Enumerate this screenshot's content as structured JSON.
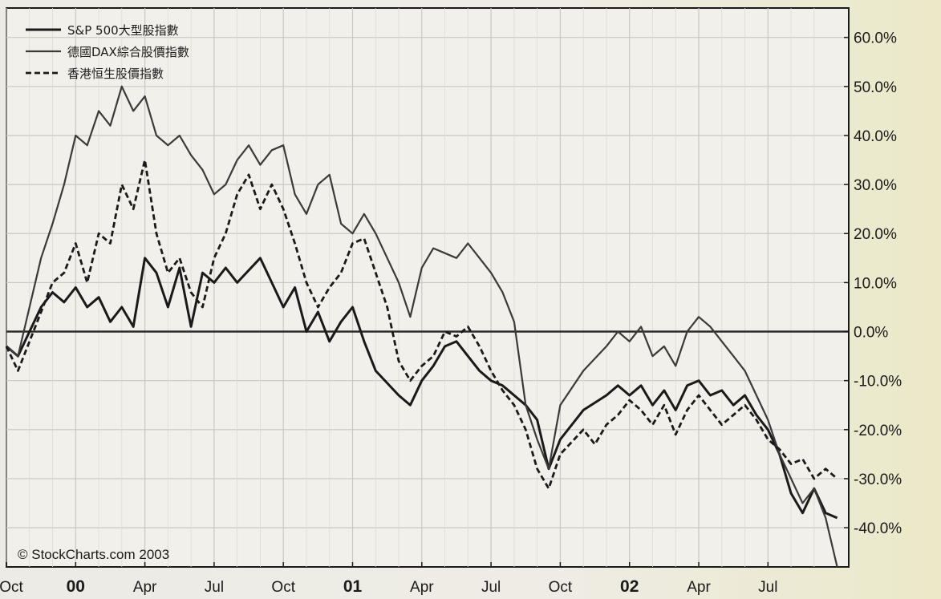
{
  "chart_data": {
    "type": "line",
    "credit": "© StockCharts.com 2003",
    "ylim": [
      -48,
      66
    ],
    "y_ticks": [
      {
        "value": 60,
        "label": "60.0%"
      },
      {
        "value": 50,
        "label": "50.0%"
      },
      {
        "value": 40,
        "label": "40.0%"
      },
      {
        "value": 30,
        "label": "30.0%"
      },
      {
        "value": 20,
        "label": "20.0%"
      },
      {
        "value": 10,
        "label": "10.0%"
      },
      {
        "value": 0,
        "label": "0.0%"
      },
      {
        "value": -10,
        "label": "-10.0%"
      },
      {
        "value": -20,
        "label": "-20.0%"
      },
      {
        "value": -30,
        "label": "-30.0%"
      },
      {
        "value": -40,
        "label": "-40.0%"
      }
    ],
    "x_ticks": [
      {
        "label": "Oct",
        "t": 0,
        "year": false
      },
      {
        "label": "00",
        "t": 3,
        "year": true
      },
      {
        "label": "Apr",
        "t": 6,
        "year": false
      },
      {
        "label": "Jul",
        "t": 9,
        "year": false
      },
      {
        "label": "Oct",
        "t": 12,
        "year": false
      },
      {
        "label": "01",
        "t": 15,
        "year": true
      },
      {
        "label": "Apr",
        "t": 18,
        "year": false
      },
      {
        "label": "Jul",
        "t": 21,
        "year": false
      },
      {
        "label": "Oct",
        "t": 24,
        "year": false
      },
      {
        "label": "02",
        "t": 27,
        "year": true
      },
      {
        "label": "Apr",
        "t": 30,
        "year": false
      },
      {
        "label": "Jul",
        "t": 33,
        "year": false
      }
    ],
    "xlim": [
      0,
      36.5
    ],
    "grid": true,
    "legend_position": "top-left",
    "series": [
      {
        "name": "S&P 500大型股指數",
        "style": "solid-thick",
        "color": "#1a1a1a",
        "points": [
          [
            0,
            -3
          ],
          [
            0.5,
            -5
          ],
          [
            1,
            0
          ],
          [
            1.5,
            5
          ],
          [
            2,
            8
          ],
          [
            2.5,
            6
          ],
          [
            3,
            9
          ],
          [
            3.5,
            5
          ],
          [
            4,
            7
          ],
          [
            4.5,
            2
          ],
          [
            5,
            5
          ],
          [
            5.5,
            1
          ],
          [
            6,
            15
          ],
          [
            6.5,
            12
          ],
          [
            7,
            5
          ],
          [
            7.5,
            13
          ],
          [
            8,
            1
          ],
          [
            8.5,
            12
          ],
          [
            9,
            10
          ],
          [
            9.5,
            13
          ],
          [
            10,
            10
          ],
          [
            11,
            15
          ],
          [
            11.5,
            10
          ],
          [
            12,
            5
          ],
          [
            12.5,
            9
          ],
          [
            13,
            0
          ],
          [
            13.5,
            4
          ],
          [
            14,
            -2
          ],
          [
            14.5,
            2
          ],
          [
            15,
            5
          ],
          [
            15.5,
            -2
          ],
          [
            16,
            -8
          ],
          [
            17,
            -13
          ],
          [
            17.5,
            -15
          ],
          [
            18,
            -10
          ],
          [
            18.5,
            -7
          ],
          [
            19,
            -3
          ],
          [
            19.5,
            -2
          ],
          [
            20,
            -5
          ],
          [
            20.5,
            -8
          ],
          [
            21,
            -10
          ],
          [
            21.5,
            -11
          ],
          [
            22,
            -13
          ],
          [
            22.5,
            -15
          ],
          [
            23,
            -18
          ],
          [
            23.5,
            -28
          ],
          [
            24,
            -22
          ],
          [
            25,
            -16
          ],
          [
            26,
            -13
          ],
          [
            26.5,
            -11
          ],
          [
            27,
            -13
          ],
          [
            27.5,
            -11
          ],
          [
            28,
            -15
          ],
          [
            28.5,
            -12
          ],
          [
            29,
            -16
          ],
          [
            29.5,
            -11
          ],
          [
            30,
            -10
          ],
          [
            30.5,
            -13
          ],
          [
            31,
            -12
          ],
          [
            31.5,
            -15
          ],
          [
            32,
            -13
          ],
          [
            32.5,
            -17
          ],
          [
            33,
            -20
          ],
          [
            33.5,
            -25
          ],
          [
            34,
            -33
          ],
          [
            34.5,
            -37
          ],
          [
            35,
            -32
          ],
          [
            35.5,
            -37
          ],
          [
            36,
            -38
          ]
        ]
      },
      {
        "name": "德國DAX綜合股價指數",
        "style": "solid-thin",
        "color": "#3a3a3a",
        "points": [
          [
            0,
            -3
          ],
          [
            0.5,
            -5
          ],
          [
            1,
            5
          ],
          [
            1.5,
            15
          ],
          [
            2,
            22
          ],
          [
            2.5,
            30
          ],
          [
            3,
            40
          ],
          [
            3.5,
            38
          ],
          [
            4,
            45
          ],
          [
            4.5,
            42
          ],
          [
            5,
            50
          ],
          [
            5.5,
            45
          ],
          [
            6,
            48
          ],
          [
            6.5,
            40
          ],
          [
            7,
            38
          ],
          [
            7.5,
            40
          ],
          [
            8,
            36
          ],
          [
            8.5,
            33
          ],
          [
            9,
            28
          ],
          [
            9.5,
            30
          ],
          [
            10,
            35
          ],
          [
            10.5,
            38
          ],
          [
            11,
            34
          ],
          [
            11.5,
            37
          ],
          [
            12,
            38
          ],
          [
            12.5,
            28
          ],
          [
            13,
            24
          ],
          [
            13.5,
            30
          ],
          [
            14,
            32
          ],
          [
            14.5,
            22
          ],
          [
            15,
            20
          ],
          [
            15.5,
            24
          ],
          [
            16,
            20
          ],
          [
            16.5,
            15
          ],
          [
            17,
            10
          ],
          [
            17.5,
            3
          ],
          [
            18,
            13
          ],
          [
            18.5,
            17
          ],
          [
            19,
            16
          ],
          [
            19.5,
            15
          ],
          [
            20,
            18
          ],
          [
            20.5,
            15
          ],
          [
            21,
            12
          ],
          [
            21.5,
            8
          ],
          [
            22,
            2
          ],
          [
            22.5,
            -15
          ],
          [
            23,
            -22
          ],
          [
            23.5,
            -28
          ],
          [
            24,
            -15
          ],
          [
            25,
            -8
          ],
          [
            26,
            -3
          ],
          [
            26.5,
            0
          ],
          [
            27,
            -2
          ],
          [
            27.5,
            1
          ],
          [
            28,
            -5
          ],
          [
            28.5,
            -3
          ],
          [
            29,
            -7
          ],
          [
            29.5,
            0
          ],
          [
            30,
            3
          ],
          [
            30.5,
            1
          ],
          [
            31,
            -2
          ],
          [
            31.5,
            -5
          ],
          [
            32,
            -8
          ],
          [
            32.5,
            -13
          ],
          [
            33,
            -18
          ],
          [
            33.5,
            -25
          ],
          [
            34,
            -30
          ],
          [
            34.5,
            -35
          ],
          [
            35,
            -32
          ],
          [
            35.5,
            -38
          ],
          [
            36,
            -48
          ]
        ]
      },
      {
        "name": "香港恒生股價指數",
        "style": "dashed",
        "color": "#1a1a1a",
        "points": [
          [
            0,
            -3
          ],
          [
            0.5,
            -8
          ],
          [
            1,
            -2
          ],
          [
            1.5,
            4
          ],
          [
            2,
            10
          ],
          [
            2.5,
            12
          ],
          [
            3,
            18
          ],
          [
            3.5,
            10
          ],
          [
            4,
            20
          ],
          [
            4.5,
            18
          ],
          [
            5,
            30
          ],
          [
            5.5,
            25
          ],
          [
            6,
            35
          ],
          [
            6.5,
            20
          ],
          [
            7,
            12
          ],
          [
            7.5,
            15
          ],
          [
            8,
            8
          ],
          [
            8.5,
            5
          ],
          [
            9,
            15
          ],
          [
            9.5,
            20
          ],
          [
            10,
            28
          ],
          [
            10.5,
            32
          ],
          [
            11,
            25
          ],
          [
            11.5,
            30
          ],
          [
            12,
            25
          ],
          [
            12.5,
            18
          ],
          [
            13,
            10
          ],
          [
            13.5,
            5
          ],
          [
            14,
            9
          ],
          [
            14.5,
            12
          ],
          [
            15,
            18
          ],
          [
            15.5,
            19
          ],
          [
            16,
            12
          ],
          [
            16.5,
            5
          ],
          [
            17,
            -6
          ],
          [
            17.5,
            -10
          ],
          [
            18,
            -7
          ],
          [
            18.5,
            -5
          ],
          [
            19,
            0
          ],
          [
            19.5,
            -1
          ],
          [
            20,
            1
          ],
          [
            20.5,
            -3
          ],
          [
            21,
            -8
          ],
          [
            21.5,
            -12
          ],
          [
            22,
            -15
          ],
          [
            22.5,
            -20
          ],
          [
            23,
            -28
          ],
          [
            23.5,
            -32
          ],
          [
            24,
            -25
          ],
          [
            25,
            -20
          ],
          [
            25.5,
            -23
          ],
          [
            26,
            -19
          ],
          [
            26.5,
            -17
          ],
          [
            27,
            -14
          ],
          [
            27.5,
            -16
          ],
          [
            28,
            -19
          ],
          [
            28.5,
            -15
          ],
          [
            29,
            -21
          ],
          [
            29.5,
            -16
          ],
          [
            30,
            -13
          ],
          [
            30.5,
            -16
          ],
          [
            31,
            -19
          ],
          [
            31.5,
            -17
          ],
          [
            32,
            -15
          ],
          [
            32.5,
            -18
          ],
          [
            33,
            -22
          ],
          [
            33.5,
            -24
          ],
          [
            34,
            -27
          ],
          [
            34.5,
            -26
          ],
          [
            35,
            -30
          ],
          [
            35.5,
            -28
          ],
          [
            36,
            -30
          ]
        ]
      }
    ]
  }
}
